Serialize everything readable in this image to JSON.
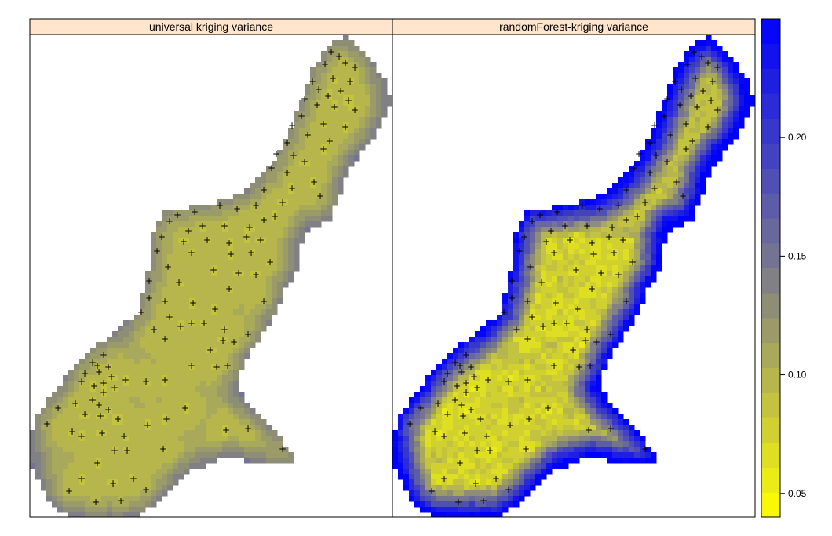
{
  "chart_data": {
    "type": "heatmap",
    "colorbar": {
      "range": [
        0.04,
        0.25
      ],
      "ticks": [
        0.05,
        0.1,
        0.15,
        0.2
      ],
      "tick_labels": [
        "0.05",
        "0.10",
        "0.15",
        "0.20"
      ],
      "levels": 20,
      "colors": [
        "#ffff00",
        "#7a7a8c",
        "#0000ff"
      ]
    },
    "panels": [
      {
        "id": "uk",
        "title": "universal kriging variance",
        "typical_value": 0.09,
        "edge_value": 0.13
      },
      {
        "id": "rf",
        "title": "randomForest-kriging variance",
        "typical_value": 0.065,
        "edge_value": 0.24
      }
    ],
    "points": "sample locations",
    "point_marker": "+"
  }
}
